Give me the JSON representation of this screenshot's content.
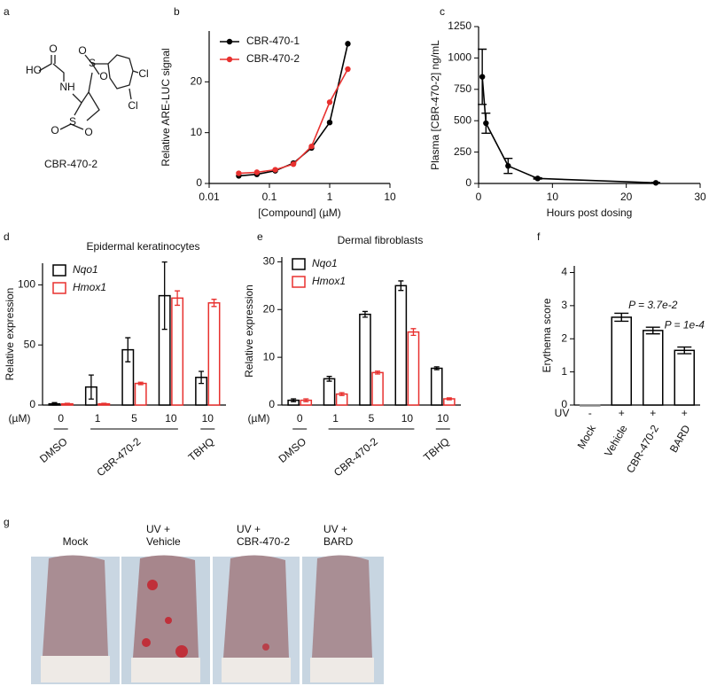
{
  "panel_labels": [
    "a",
    "b",
    "c",
    "d",
    "e",
    "f",
    "g"
  ],
  "structure": {
    "name": "CBR-470-2",
    "atoms": [
      "HO",
      "O",
      "NH",
      "S",
      "O",
      "O",
      "S",
      "O",
      "O",
      "Cl",
      "Cl"
    ]
  },
  "chart_data": [
    {
      "type": "line",
      "x_label": "[Compound] (µM)",
      "y_label": "Relative ARE-LUC signal",
      "x": [
        0.031,
        0.062,
        0.125,
        0.25,
        0.5,
        1,
        2
      ],
      "xscale": "log",
      "xlim": [
        0.01,
        10
      ],
      "xticks": [
        0.01,
        0.1,
        1,
        10
      ],
      "ylim": [
        0,
        30
      ],
      "yticks": [
        0,
        10,
        20
      ],
      "legend": "upper left",
      "series": [
        {
          "name": "CBR-470-1",
          "color": "#000000",
          "values": [
            1.5,
            1.8,
            2.5,
            4,
            7,
            12,
            27.5
          ]
        },
        {
          "name": "CBR-470-2",
          "color": "#e8312f",
          "values": [
            2,
            2.2,
            2.7,
            3.8,
            7.3,
            16,
            22.5
          ]
        }
      ]
    },
    {
      "type": "line",
      "x_label": "Hours post dosing",
      "y_label": "Plasma [CBR-470-2] ng/mL",
      "x": [
        0.5,
        1,
        4,
        8,
        24
      ],
      "xlim": [
        0,
        30
      ],
      "xticks": [
        0,
        10,
        20,
        30
      ],
      "ylim": [
        0,
        1250
      ],
      "yticks": [
        0,
        250,
        500,
        750,
        1000,
        1250
      ],
      "series": [
        {
          "color": "#000000",
          "values": [
            850,
            480,
            140,
            40,
            5
          ],
          "errors": [
            220,
            80,
            60,
            5,
            3
          ]
        }
      ]
    },
    {
      "type": "grouped_bar",
      "title": "Epidermal keratinocytes",
      "y_label": "Relative expression",
      "unit_label": "(µM)",
      "categories": [
        "0",
        "1",
        "5",
        "10",
        "10"
      ],
      "group_labels": [
        "DMSO",
        "CBR-470-2",
        "CBR-470-2",
        "CBR-470-2",
        "TBHQ"
      ],
      "ylim": [
        0,
        118
      ],
      "yticks": [
        0,
        50,
        100
      ],
      "legend": "upper left",
      "series": [
        {
          "name": "Nqo1",
          "color": "#000000",
          "values": [
            1,
            15,
            46,
            91,
            23
          ],
          "errors": [
            1,
            10,
            10,
            28,
            5
          ]
        },
        {
          "name": "Hmox1",
          "color": "#e8312f",
          "values": [
            1,
            1,
            18,
            89,
            85
          ],
          "errors": [
            0.5,
            0.5,
            1,
            6,
            3
          ]
        }
      ]
    },
    {
      "type": "grouped_bar",
      "title": "Dermal fibroblasts",
      "y_label": "Relative expression",
      "unit_label": "(µM)",
      "categories": [
        "0",
        "1",
        "5",
        "10",
        "10"
      ],
      "group_labels": [
        "DMSO",
        "CBR-470-2",
        "CBR-470-2",
        "CBR-470-2",
        "TBHQ"
      ],
      "ylim": [
        0,
        31
      ],
      "yticks": [
        0,
        10,
        20,
        30
      ],
      "legend": "upper left",
      "series": [
        {
          "name": "Nqo1",
          "color": "#000000",
          "values": [
            1,
            5.5,
            19,
            25,
            7.7
          ],
          "errors": [
            0.3,
            0.5,
            0.6,
            1,
            0.3
          ]
        },
        {
          "name": "Hmox1",
          "color": "#e8312f",
          "values": [
            1,
            2.3,
            6.8,
            15.3,
            1.3
          ],
          "errors": [
            0.3,
            0.3,
            0.3,
            0.7,
            0.2
          ]
        }
      ]
    },
    {
      "type": "bar",
      "y_label": "Erythema score",
      "categories": [
        "Mock",
        "Vehicle",
        "CBR-470-2",
        "BARD"
      ],
      "values": [
        0,
        2.65,
        2.25,
        1.65
      ],
      "errors": [
        0,
        0.12,
        0.1,
        0.1
      ],
      "color": "#000000",
      "ylim": [
        0,
        4.2
      ],
      "yticks": [
        0,
        1,
        2,
        3,
        4
      ],
      "uv_label": "UV",
      "uv_signs": [
        "-",
        "+",
        "+",
        "+"
      ],
      "annotations": [
        null,
        null,
        "P = 3.7e-2",
        "P = 1e-4"
      ]
    }
  ],
  "photos": {
    "labels": [
      [
        "Mock"
      ],
      [
        "UV +",
        "Vehicle"
      ],
      [
        "UV +",
        "CBR-470-2"
      ],
      [
        "UV +",
        "BARD"
      ]
    ]
  }
}
